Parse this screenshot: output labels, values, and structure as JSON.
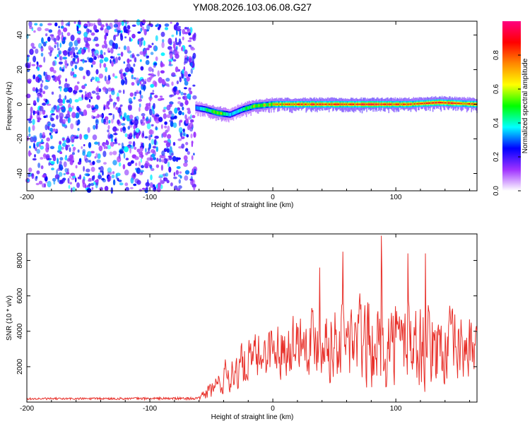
{
  "title": "YM08.2026.103.06.08.G27",
  "chart_data": [
    {
      "type": "heatmap",
      "xlabel": "Height of straight line (km)",
      "ylabel": "Frequency (Hz)",
      "xlim": [
        -200,
        166
      ],
      "ylim": [
        -50,
        48
      ],
      "xticks": [
        -200,
        -100,
        0,
        100
      ],
      "yticks": [
        -40,
        -20,
        0,
        20,
        40
      ],
      "noise_region_x": [
        -200,
        -63
      ],
      "signal_track": [
        {
          "x": -63,
          "y": -2,
          "amp": 0.45
        },
        {
          "x": -55,
          "y": -3,
          "amp": 0.6
        },
        {
          "x": -45,
          "y": -5,
          "amp": 0.75
        },
        {
          "x": -35,
          "y": -6,
          "amp": 0.5
        },
        {
          "x": -25,
          "y": -3,
          "amp": 0.6
        },
        {
          "x": -15,
          "y": -1,
          "amp": 0.7
        },
        {
          "x": 0,
          "y": 0,
          "amp": 0.8
        },
        {
          "x": 20,
          "y": 0,
          "amp": 0.9
        },
        {
          "x": 50,
          "y": 0,
          "amp": 0.9
        },
        {
          "x": 80,
          "y": 0,
          "amp": 0.95
        },
        {
          "x": 110,
          "y": 0,
          "amp": 0.9
        },
        {
          "x": 135,
          "y": 1,
          "amp": 0.95
        },
        {
          "x": 166,
          "y": 0,
          "amp": 0.85
        }
      ],
      "colorbar": {
        "label": "Normalized spectral amplitude",
        "ticks": [
          0.0,
          0.2,
          0.4,
          0.6,
          0.8
        ],
        "tick_labels": [
          "0.0",
          "0.2",
          "0.4",
          "0.6",
          "0.8"
        ],
        "range": [
          0,
          1
        ],
        "colors": [
          "#ffffff",
          "#9f32ff",
          "#0000ff",
          "#00ffff",
          "#00ff00",
          "#ffff00",
          "#ff8800",
          "#ff0000",
          "#ff0080"
        ]
      }
    },
    {
      "type": "line",
      "xlabel": "Height of straight line (km)",
      "ylabel": "SNR (10 * v/v)",
      "xlim": [
        -200,
        166
      ],
      "ylim": [
        0,
        9500
      ],
      "xticks": [
        -200,
        -100,
        0,
        100
      ],
      "yticks": [
        2000,
        4000,
        6000,
        8000
      ],
      "color": "#e8302a",
      "envelope": [
        {
          "x": -200,
          "base": 180,
          "amp": 80
        },
        {
          "x": -60,
          "base": 200,
          "amp": 100
        },
        {
          "x": -50,
          "base": 700,
          "amp": 800
        },
        {
          "x": -35,
          "base": 1500,
          "amp": 2200
        },
        {
          "x": -20,
          "base": 2000,
          "amp": 2500
        },
        {
          "x": -5,
          "base": 2600,
          "amp": 2800
        },
        {
          "x": 15,
          "base": 3200,
          "amp": 3200
        },
        {
          "x": 35,
          "base": 3400,
          "amp": 3800
        },
        {
          "x": 55,
          "base": 3200,
          "amp": 4400
        },
        {
          "x": 80,
          "base": 3000,
          "amp": 5000
        },
        {
          "x": 110,
          "base": 3000,
          "amp": 4600
        },
        {
          "x": 140,
          "base": 2800,
          "amp": 4200
        },
        {
          "x": 166,
          "base": 2800,
          "amp": 3200
        }
      ],
      "peaks": [
        {
          "x": 57,
          "y": 8500
        },
        {
          "x": 88,
          "y": 9400
        },
        {
          "x": 110,
          "y": 8400
        },
        {
          "x": 124,
          "y": 8400
        },
        {
          "x": 38,
          "y": 7600
        }
      ]
    }
  ]
}
